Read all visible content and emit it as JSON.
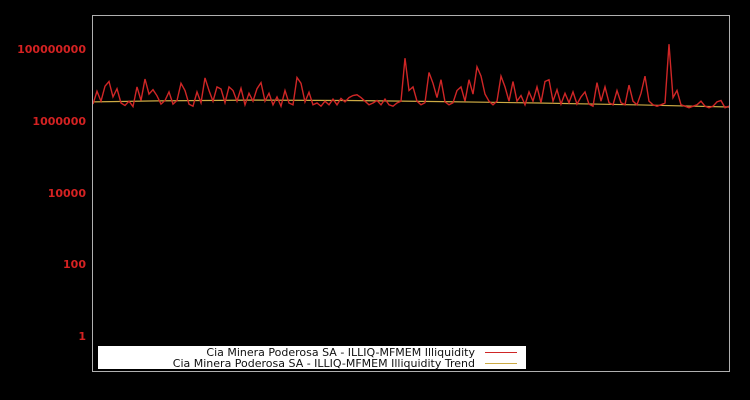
{
  "window": {
    "background": "#000000",
    "frame_color": "#b0b0b0"
  },
  "chart_data": {
    "type": "line",
    "title": "",
    "xlabel": "",
    "ylabel": "",
    "x_axis": {
      "tick_labels_visible": false
    },
    "y_axis": {
      "scale": "log",
      "tick_values": [
        100000000,
        1000000,
        10000,
        100,
        1
      ],
      "tick_labels": [
        "100000000",
        "1000000",
        "10000",
        "100",
        "1"
      ],
      "tick_color": "#d42222",
      "range_log10": [
        -0.98,
        8.98
      ]
    },
    "grid": false,
    "legend": {
      "position": "bottom-inside",
      "background": "#ffffff",
      "entries": [
        {
          "label": "Cia Minera Poderosa SA - ILLIQ-MFMEM Illiquidity",
          "color": "#cf2626"
        },
        {
          "label": "Cia Minera Poderosa SA - ILLIQ-MFMEM Illiquidity Trend",
          "color": "#ccaa44"
        }
      ]
    },
    "series": [
      {
        "name": "Cia Minera Poderosa SA - ILLIQ-MFMEM Illiquidity",
        "color": "#cf2626",
        "log10_values": [
          6.52,
          6.88,
          6.6,
          7.02,
          7.15,
          6.72,
          6.95,
          6.55,
          6.48,
          6.6,
          6.45,
          7.0,
          6.62,
          7.22,
          6.8,
          6.92,
          6.75,
          6.52,
          6.62,
          6.86,
          6.52,
          6.62,
          7.1,
          6.9,
          6.52,
          6.46,
          6.86,
          6.56,
          7.25,
          6.9,
          6.6,
          7.0,
          6.94,
          6.56,
          7.0,
          6.9,
          6.6,
          6.96,
          6.5,
          6.82,
          6.6,
          6.95,
          7.12,
          6.6,
          6.82,
          6.5,
          6.72,
          6.46,
          6.9,
          6.55,
          6.5,
          7.26,
          7.1,
          6.58,
          6.85,
          6.5,
          6.55,
          6.46,
          6.6,
          6.5,
          6.66,
          6.5,
          6.68,
          6.58,
          6.7,
          6.76,
          6.78,
          6.7,
          6.6,
          6.5,
          6.55,
          6.62,
          6.5,
          6.66,
          6.5,
          6.46,
          6.55,
          6.6,
          7.8,
          6.9,
          7.0,
          6.6,
          6.5,
          6.56,
          7.4,
          7.1,
          6.7,
          7.2,
          6.58,
          6.5,
          6.56,
          6.9,
          7.0,
          6.6,
          7.2,
          6.8,
          7.56,
          7.3,
          6.8,
          6.6,
          6.5,
          6.6,
          7.3,
          7.0,
          6.6,
          7.15,
          6.6,
          6.76,
          6.5,
          6.86,
          6.6,
          7.0,
          6.56,
          7.15,
          7.2,
          6.6,
          6.92,
          6.52,
          6.82,
          6.56,
          6.86,
          6.52,
          6.72,
          6.86,
          6.52,
          6.46,
          7.12,
          6.6,
          7.0,
          6.56,
          6.5,
          6.9,
          6.56,
          6.5,
          7.05,
          6.6,
          6.5,
          6.82,
          7.3,
          6.6,
          6.5,
          6.46,
          6.5,
          6.55,
          8.19,
          6.7,
          6.9,
          6.5,
          6.46,
          6.42,
          6.46,
          6.5,
          6.6,
          6.46,
          6.42,
          6.46,
          6.58,
          6.62,
          6.42,
          6.46
        ]
      },
      {
        "name": "Cia Minera Poderosa SA - ILLIQ-MFMEM Illiquidity Trend",
        "color": "#ccaa44",
        "points": [
          {
            "x": 0.0,
            "log10": 6.58
          },
          {
            "x": 0.1,
            "log10": 6.61
          },
          {
            "x": 0.25,
            "log10": 6.63
          },
          {
            "x": 0.4,
            "log10": 6.62
          },
          {
            "x": 0.55,
            "log10": 6.59
          },
          {
            "x": 0.7,
            "log10": 6.55
          },
          {
            "x": 0.85,
            "log10": 6.5
          },
          {
            "x": 1.0,
            "log10": 6.44
          }
        ]
      }
    ]
  }
}
